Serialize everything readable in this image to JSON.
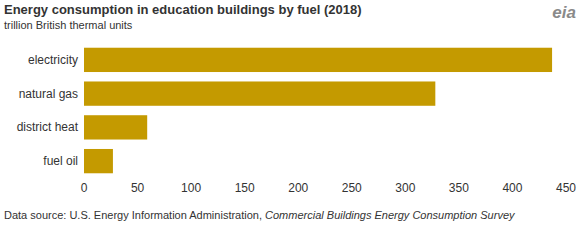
{
  "chart_data": {
    "type": "bar",
    "orientation": "horizontal",
    "title": "Energy consumption in education buildings by fuel (2018)",
    "subtitle": "trillion British thermal units",
    "categories": [
      "electricity",
      "natural gas",
      "district heat",
      "fuel oil"
    ],
    "values": [
      437,
      328,
      59,
      27
    ],
    "color": "#c49a00",
    "xlim": [
      0,
      450
    ],
    "xticks": [
      0,
      50,
      100,
      150,
      200,
      250,
      300,
      350,
      400,
      450
    ],
    "grid": false,
    "source": [
      "Data source: U.S. Energy Information Administration, ",
      "Commercial Buildings Energy Consumption Survey"
    ],
    "logo": "eia"
  }
}
